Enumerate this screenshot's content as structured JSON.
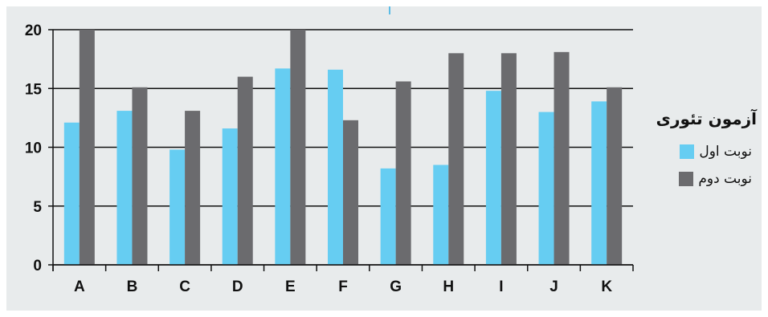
{
  "chart_data": {
    "type": "bar",
    "categories": [
      "A",
      "B",
      "C",
      "D",
      "E",
      "F",
      "G",
      "H",
      "I",
      "J",
      "K"
    ],
    "series": [
      {
        "name": "نوبت اول",
        "color": "#66cdf2",
        "values": [
          12.1,
          13.1,
          9.8,
          11.6,
          16.7,
          16.6,
          8.2,
          8.5,
          14.8,
          13.0,
          13.9
        ]
      },
      {
        "name": "نوبت دوم",
        "color": "#6b6b6e",
        "values": [
          20.0,
          15.1,
          13.1,
          16.0,
          20.0,
          12.3,
          15.6,
          18.0,
          18.0,
          18.1,
          15.1
        ]
      }
    ],
    "legend_title": "آزمون تئوری",
    "yticks": [
      "0",
      "5",
      "10",
      "15",
      "20"
    ],
    "ylim": [
      0,
      20
    ],
    "grid": true,
    "legend_position": "right"
  }
}
